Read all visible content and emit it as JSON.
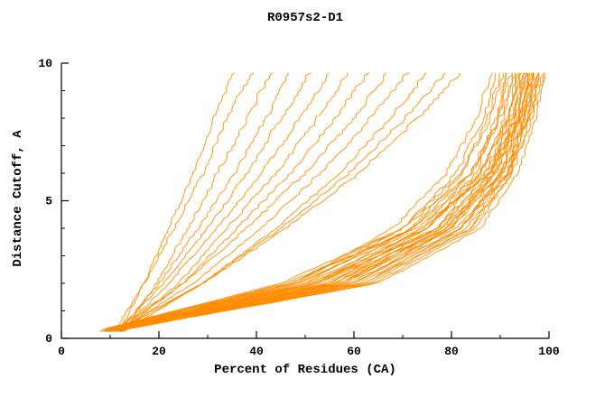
{
  "chart_data": {
    "type": "line",
    "title": "R0957s2-D1",
    "xlabel": "Percent of Residues (CA)",
    "ylabel": "Distance Cutoff, A",
    "xlim": [
      0,
      100
    ],
    "ylim": [
      0,
      10
    ],
    "xticks_major": [
      0,
      20,
      40,
      60,
      80,
      100
    ],
    "xticks_minor": [
      10,
      30,
      50,
      70,
      90
    ],
    "yticks_major": [
      0,
      5,
      10
    ],
    "yticks_minor": [
      1,
      2,
      3,
      4,
      6,
      7,
      8,
      9
    ],
    "line_color": "#ff8c00",
    "axis_color": "#000000",
    "legend": "none",
    "grid": "off",
    "cutoff_levels": [
      0.3,
      2,
      4,
      6,
      8,
      9.7
    ],
    "series": [
      {
        "x_at_cutoffs": [
          12,
          17,
          22,
          27,
          31.5,
          35
        ]
      },
      {
        "x_at_cutoffs": [
          11,
          17,
          23,
          29,
          34,
          39
        ]
      },
      {
        "x_at_cutoffs": [
          13,
          19.5,
          26,
          32,
          38,
          43
        ]
      },
      {
        "x_at_cutoffs": [
          12,
          20,
          28,
          35.5,
          42,
          47
        ]
      },
      {
        "x_at_cutoffs": [
          11.5,
          21,
          30,
          38,
          45,
          51
        ]
      },
      {
        "x_at_cutoffs": [
          12.5,
          22,
          32,
          41,
          49,
          55
        ]
      },
      {
        "x_at_cutoffs": [
          13,
          24,
          34,
          44,
          52.5,
          59
        ]
      },
      {
        "x_at_cutoffs": [
          12,
          25,
          36,
          47,
          56,
          63
        ]
      },
      {
        "x_at_cutoffs": [
          11,
          25,
          38,
          50,
          60,
          67
        ]
      },
      {
        "x_at_cutoffs": [
          12,
          27,
          41,
          53,
          63.5,
          71
        ]
      },
      {
        "x_at_cutoffs": [
          13,
          29,
          44,
          57,
          67.5,
          75
        ]
      },
      {
        "x_at_cutoffs": [
          12,
          29,
          45,
          59,
          70.5,
          79
        ]
      },
      {
        "x_at_cutoffs": [
          11,
          29,
          46,
          61,
          73,
          82
        ]
      },
      {
        "x_at_cutoffs": [
          8,
          48,
          68,
          79,
          85,
          88
        ]
      },
      {
        "x_at_cutoffs": [
          9,
          50,
          70,
          81,
          86.5,
          89
        ]
      },
      {
        "x_at_cutoffs": [
          10,
          52,
          72,
          82,
          87.5,
          90
        ]
      },
      {
        "x_at_cutoffs": [
          8.5,
          47,
          70,
          82,
          88,
          90.5
        ]
      },
      {
        "x_at_cutoffs": [
          9.5,
          53,
          74,
          84,
          89,
          91
        ]
      },
      {
        "x_at_cutoffs": [
          10.5,
          55,
          75,
          85,
          89.5,
          91.5
        ]
      },
      {
        "x_at_cutoffs": [
          9,
          49,
          72,
          84,
          89.5,
          92
        ]
      },
      {
        "x_at_cutoffs": [
          10,
          56,
          77,
          86,
          90.5,
          92.5
        ]
      },
      {
        "x_at_cutoffs": [
          8,
          45,
          70,
          84,
          90,
          93
        ]
      },
      {
        "x_at_cutoffs": [
          11,
          58,
          78,
          87,
          91.5,
          93
        ]
      },
      {
        "x_at_cutoffs": [
          9.5,
          52,
          75,
          86,
          91.5,
          93.5
        ]
      },
      {
        "x_at_cutoffs": [
          10,
          57,
          79,
          88,
          92,
          94
        ]
      },
      {
        "x_at_cutoffs": [
          8.5,
          47,
          72,
          86,
          91.5,
          94
        ]
      },
      {
        "x_at_cutoffs": [
          11.5,
          60,
          80,
          88.5,
          92.5,
          94.5
        ]
      },
      {
        "x_at_cutoffs": [
          9,
          50,
          75,
          87,
          92.5,
          95
        ]
      },
      {
        "x_at_cutoffs": [
          10.5,
          58,
          80,
          89,
          93,
          95
        ]
      },
      {
        "x_at_cutoffs": [
          12,
          62,
          82,
          90,
          93.5,
          95
        ]
      },
      {
        "x_at_cutoffs": [
          9.5,
          53,
          77,
          88,
          93,
          95.5
        ]
      },
      {
        "x_at_cutoffs": [
          10,
          55,
          79,
          89,
          93.5,
          96
        ]
      },
      {
        "x_at_cutoffs": [
          11,
          60,
          82,
          90.5,
          94,
          96
        ]
      },
      {
        "x_at_cutoffs": [
          8.5,
          48,
          74,
          87.5,
          93.5,
          96
        ]
      },
      {
        "x_at_cutoffs": [
          12.5,
          63,
          84,
          91.5,
          94.5,
          96.5
        ]
      },
      {
        "x_at_cutoffs": [
          9,
          51,
          77,
          89,
          94,
          96.5
        ]
      },
      {
        "x_at_cutoffs": [
          10,
          56,
          80,
          90,
          94.5,
          97
        ]
      },
      {
        "x_at_cutoffs": [
          11.5,
          61,
          83,
          91.5,
          95,
          97
        ]
      },
      {
        "x_at_cutoffs": [
          8,
          46,
          73,
          88,
          94,
          97
        ]
      },
      {
        "x_at_cutoffs": [
          12,
          64,
          85,
          92,
          95.5,
          97.5
        ]
      },
      {
        "x_at_cutoffs": [
          9.5,
          54,
          79,
          90.5,
          95,
          97.5
        ]
      },
      {
        "x_at_cutoffs": [
          10.5,
          59,
          82,
          91.5,
          95.5,
          98
        ]
      },
      {
        "x_at_cutoffs": [
          11,
          62,
          84,
          92.5,
          96,
          98
        ]
      },
      {
        "x_at_cutoffs": [
          9,
          52,
          78,
          90.5,
          95.5,
          98.5
        ]
      },
      {
        "x_at_cutoffs": [
          10,
          57,
          81,
          92,
          96.5,
          99
        ]
      },
      {
        "x_at_cutoffs": [
          12,
          65,
          86,
          93.5,
          97,
          99
        ]
      }
    ]
  }
}
